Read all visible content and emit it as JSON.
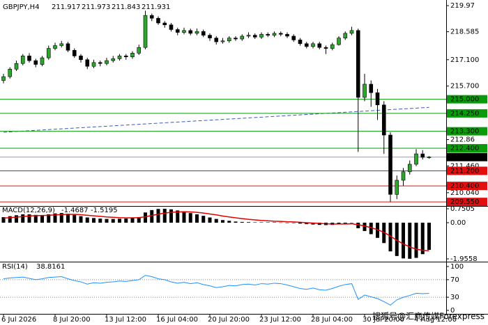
{
  "chart_data": [
    {
      "type": "candlestick",
      "title": "GBPJPY,H4",
      "open": [
        216.0,
        216.2,
        216.6,
        216.9,
        217.3,
        217.05,
        216.85,
        217.2,
        217.7,
        217.85,
        217.95,
        217.6,
        217.3,
        217.1,
        216.75,
        216.95,
        216.9,
        217.05,
        217.15,
        217.3,
        217.25,
        217.45,
        217.75,
        219.45,
        219.3,
        219.05,
        218.95,
        218.7,
        218.55,
        218.65,
        218.5,
        218.6,
        218.4,
        218.25,
        218.05,
        218.1,
        218.25,
        218.2,
        218.35,
        218.4,
        218.3,
        218.45,
        218.4,
        218.5,
        218.45,
        218.35,
        218.15,
        217.95,
        217.8,
        217.95,
        217.75,
        217.7,
        217.9,
        218.25,
        218.5,
        218.65,
        215.1,
        215.8,
        215.35,
        214.7,
        213.1,
        209.95,
        210.7,
        211.15,
        211.55,
        212.1,
        211.917
      ],
      "high": [
        216.35,
        216.7,
        217.05,
        217.4,
        217.45,
        217.15,
        217.3,
        217.85,
        218.0,
        218.1,
        218.05,
        217.7,
        217.4,
        217.2,
        217.1,
        217.05,
        217.2,
        217.3,
        217.4,
        217.4,
        217.55,
        217.9,
        219.7,
        219.55,
        219.4,
        219.15,
        219.05,
        218.8,
        218.8,
        218.75,
        218.75,
        218.7,
        218.5,
        218.35,
        218.25,
        218.35,
        218.35,
        218.45,
        218.55,
        218.5,
        218.55,
        218.55,
        218.6,
        218.6,
        218.55,
        218.45,
        218.25,
        218.05,
        218.05,
        218.05,
        217.85,
        218.0,
        218.35,
        218.6,
        218.85,
        218.75,
        216.35,
        216.0,
        215.55,
        214.9,
        213.25,
        210.95,
        211.35,
        211.75,
        212.35,
        212.3,
        211.973
      ],
      "low": [
        215.85,
        216.1,
        216.5,
        216.8,
        216.95,
        216.7,
        216.75,
        217.1,
        217.6,
        217.75,
        217.5,
        217.2,
        216.95,
        216.6,
        216.65,
        216.75,
        216.8,
        216.95,
        217.05,
        217.1,
        217.15,
        217.35,
        217.65,
        219.15,
        218.95,
        218.8,
        218.6,
        218.4,
        218.45,
        218.4,
        218.4,
        218.3,
        218.1,
        217.9,
        217.95,
        218.0,
        218.1,
        218.1,
        218.25,
        218.2,
        218.2,
        218.3,
        218.3,
        218.35,
        218.25,
        218.05,
        217.85,
        217.7,
        217.7,
        217.65,
        217.4,
        217.6,
        217.85,
        218.15,
        218.4,
        212.2,
        214.9,
        214.6,
        213.9,
        212.1,
        209.55,
        209.7,
        210.4,
        211.0,
        211.45,
        211.8,
        211.843
      ],
      "close": [
        216.2,
        216.6,
        216.9,
        217.3,
        217.05,
        216.85,
        217.2,
        217.7,
        217.85,
        217.95,
        217.6,
        217.3,
        217.1,
        216.75,
        216.95,
        216.9,
        217.05,
        217.15,
        217.3,
        217.25,
        217.45,
        217.75,
        219.45,
        219.3,
        219.05,
        218.95,
        218.7,
        218.55,
        218.65,
        218.5,
        218.6,
        218.4,
        218.25,
        218.05,
        218.1,
        218.25,
        218.2,
        218.35,
        218.4,
        218.3,
        218.45,
        218.4,
        218.5,
        218.45,
        218.35,
        218.15,
        217.95,
        217.8,
        217.95,
        217.75,
        217.7,
        217.9,
        218.25,
        218.5,
        218.65,
        215.1,
        215.8,
        215.35,
        214.7,
        213.1,
        209.95,
        210.7,
        211.15,
        211.55,
        212.1,
        211.92,
        211.931
      ],
      "up_color": "#2ea62e",
      "down_color": "#000000",
      "ma": {
        "color": "#3a55d0",
        "values": [
          213.25,
          213.27,
          213.29,
          213.31,
          213.33,
          213.35,
          213.37,
          213.39,
          213.41,
          213.43,
          213.45,
          213.47,
          213.49,
          213.51,
          213.53,
          213.55,
          213.57,
          213.59,
          213.61,
          213.63,
          213.65,
          213.67,
          213.69,
          213.71,
          213.73,
          213.75,
          213.77,
          213.79,
          213.81,
          213.83,
          213.85,
          213.87,
          213.89,
          213.91,
          213.93,
          213.95,
          213.97,
          213.99,
          214.01,
          214.03,
          214.05,
          214.07,
          214.09,
          214.11,
          214.13,
          214.15,
          214.17,
          214.19,
          214.21,
          214.23,
          214.25,
          214.27,
          214.29,
          214.31,
          214.33,
          214.35,
          214.37,
          214.39,
          214.41,
          214.43,
          214.45,
          214.47,
          214.49,
          214.51,
          214.53,
          214.55,
          214.57
        ]
      },
      "price_line_color": "#8c9cc4",
      "levels": [
        {
          "value": 215,
          "label": "215.000",
          "color": "#0a9a0a"
        },
        {
          "value": 214.25,
          "label": "214.250",
          "color": "#0a9a0a"
        },
        {
          "value": 213.3,
          "label": "213.300",
          "color": "#0a9a0a"
        },
        {
          "value": 212.4,
          "label": "212.400",
          "color": "#0a9a0a"
        },
        {
          "value": 211.2,
          "label": "211.200",
          "color": "#e01010"
        },
        {
          "value": 210.4,
          "label": "210.400",
          "color": "#e01010"
        },
        {
          "value": 209.55,
          "label": "209.550",
          "color": "#e01010"
        }
      ],
      "ylim": [
        209.37,
        220.27
      ],
      "yticks": [
        219.97,
        218.585,
        {
          "value": 217.1,
          "label": "217.100"
        },
        {
          "value": 215.7,
          "label": "215.700"
        },
        212.86,
        {
          "value": 211.46,
          "label": "211.460"
        },
        {
          "value": 210.04,
          "label": "210.040"
        }
      ]
    },
    {
      "type": "macd",
      "title": "MACD(12,26,9)",
      "color": "#000000",
      "signal_color": "#e00000",
      "macd": [
        0.3,
        0.35,
        0.4,
        0.45,
        0.45,
        0.42,
        0.4,
        0.45,
        0.5,
        0.52,
        0.48,
        0.42,
        0.35,
        0.28,
        0.25,
        0.22,
        0.2,
        0.2,
        0.21,
        0.22,
        0.25,
        0.3,
        0.55,
        0.68,
        0.74,
        0.75,
        0.72,
        0.66,
        0.6,
        0.52,
        0.45,
        0.37,
        0.28,
        0.2,
        0.14,
        0.1,
        0.06,
        0.04,
        0.03,
        0.02,
        0.02,
        0.02,
        0.02,
        0.01,
        0.0,
        -0.02,
        -0.05,
        -0.08,
        -0.1,
        -0.12,
        -0.13,
        -0.12,
        -0.08,
        -0.04,
        0.0,
        -0.3,
        -0.45,
        -0.62,
        -0.82,
        -1.1,
        -1.55,
        -1.8,
        -1.93,
        -1.95,
        -1.9,
        -1.7,
        -1.4687
      ],
      "signal": [
        0.25,
        0.27,
        0.3,
        0.33,
        0.36,
        0.38,
        0.39,
        0.4,
        0.42,
        0.44,
        0.45,
        0.45,
        0.43,
        0.4,
        0.37,
        0.34,
        0.31,
        0.29,
        0.27,
        0.26,
        0.26,
        0.27,
        0.32,
        0.39,
        0.46,
        0.52,
        0.56,
        0.58,
        0.59,
        0.58,
        0.56,
        0.52,
        0.47,
        0.42,
        0.36,
        0.31,
        0.26,
        0.22,
        0.18,
        0.15,
        0.12,
        0.1,
        0.08,
        0.07,
        0.05,
        0.04,
        0.02,
        0.0,
        -0.02,
        -0.04,
        -0.06,
        -0.07,
        -0.07,
        -0.07,
        -0.06,
        -0.11,
        -0.18,
        -0.27,
        -0.38,
        -0.52,
        -0.73,
        -0.95,
        -1.15,
        -1.31,
        -1.43,
        -1.49,
        -1.5195
      ],
      "ylim": [
        -1.9558,
        0.7505
      ],
      "yticks": [
        0.7505,
        {
          "value": 0,
          "label": "0.00"
        },
        -1.9558
      ]
    },
    {
      "type": "line",
      "title": "RSI(14)",
      "color": "#1e90ff",
      "values": [
        72,
        74,
        75,
        76,
        73,
        70,
        72,
        75,
        76,
        77,
        72,
        68,
        65,
        60,
        63,
        62,
        64,
        65,
        67,
        66,
        68,
        70,
        80,
        77,
        72,
        70,
        65,
        62,
        64,
        61,
        63,
        59,
        56,
        52,
        54,
        57,
        56,
        59,
        60,
        58,
        61,
        60,
        62,
        61,
        58,
        54,
        50,
        48,
        51,
        47,
        46,
        50,
        55,
        59,
        61,
        25,
        35,
        31,
        27,
        20,
        12,
        24,
        30,
        34,
        39,
        38,
        38.8161
      ],
      "ylim": [
        0,
        100
      ],
      "yticks": [
        100,
        70,
        30,
        0
      ],
      "grid_dashed": true,
      "categories": [
        "6 Jul 2026",
        null,
        null,
        null,
        null,
        null,
        null,
        null,
        "8 Jul 20:00",
        null,
        null,
        null,
        null,
        null,
        null,
        null,
        "13 Jul 12:00",
        null,
        null,
        null,
        null,
        null,
        null,
        null,
        "16 Jul 04:00",
        null,
        null,
        null,
        null,
        null,
        null,
        null,
        "20 Jul 20:00",
        null,
        null,
        null,
        null,
        null,
        null,
        null,
        "23 Jul 12:00",
        null,
        null,
        null,
        null,
        null,
        null,
        null,
        "28 Jul 04:00",
        null,
        null,
        null,
        null,
        null,
        null,
        null,
        "30 Jul 20:00",
        null,
        null,
        null,
        null,
        null,
        null,
        null,
        "4 Aug 12:00",
        null,
        null
      ]
    }
  ],
  "watermark": "搜狐号@汇商传媒Forexpress"
}
